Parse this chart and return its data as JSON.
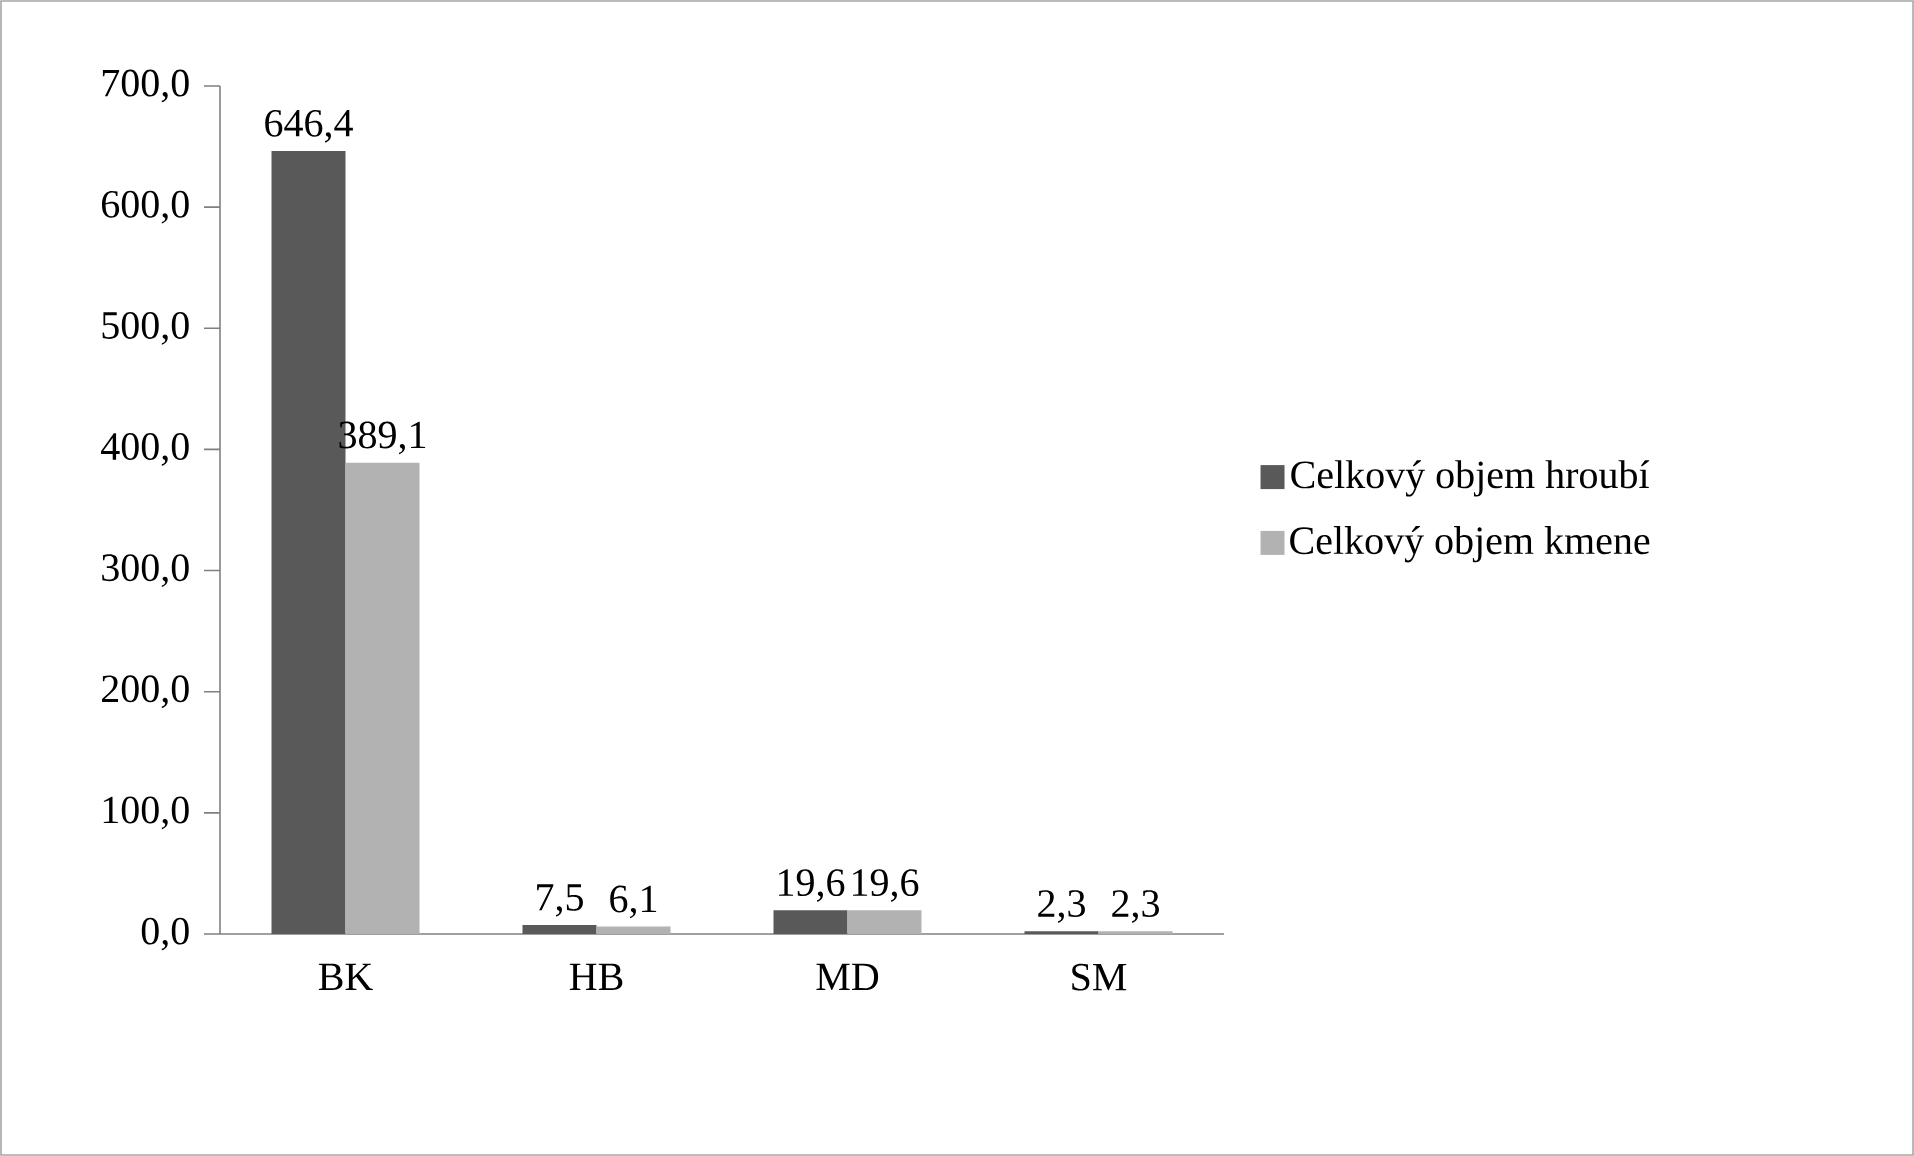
{
  "chart_data": {
    "type": "bar",
    "categories": [
      "BK",
      "HB",
      "MD",
      "SM"
    ],
    "series": [
      {
        "name": "Celkový objem hroubí",
        "color": "#595959",
        "values": [
          646.4,
          7.5,
          19.6,
          2.3
        ],
        "value_labels": [
          "646,4",
          "7,5",
          "19,6",
          "2,3"
        ]
      },
      {
        "name": "Celkový objem kmene",
        "color": "#b2b2b2",
        "values": [
          389.1,
          6.1,
          19.6,
          2.3
        ],
        "value_labels": [
          "389,1",
          "6,1",
          "19,6",
          "2,3"
        ]
      }
    ],
    "ylim": [
      0,
      700
    ],
    "yticks": [
      {
        "value": 0,
        "label": "0,0"
      },
      {
        "value": 100,
        "label": "100,0"
      },
      {
        "value": 200,
        "label": "200,0"
      },
      {
        "value": 300,
        "label": "300,0"
      },
      {
        "value": 400,
        "label": "400,0"
      },
      {
        "value": 500,
        "label": "500,0"
      },
      {
        "value": 600,
        "label": "600,0"
      },
      {
        "value": 700,
        "label": "700,0"
      }
    ],
    "grid": false,
    "legend": "right"
  }
}
